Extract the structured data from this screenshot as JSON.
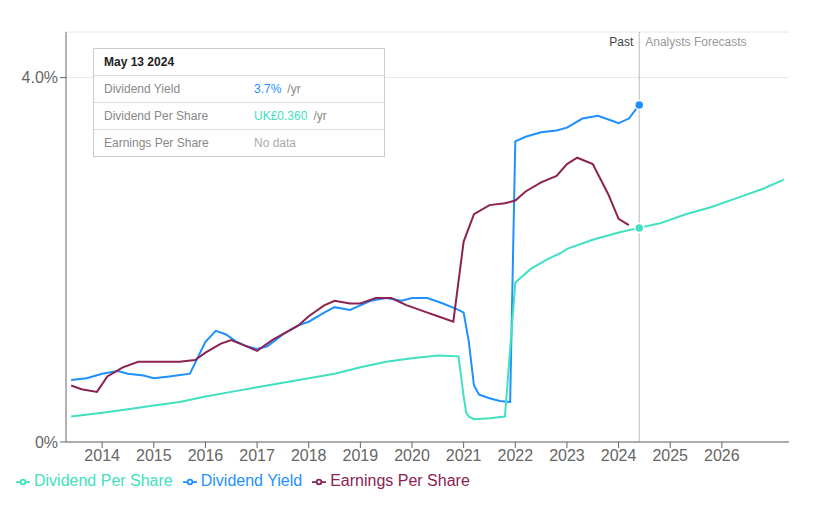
{
  "chart_data": {
    "type": "line",
    "xlim": [
      2013.3,
      2027.3
    ],
    "xticks": [
      2014,
      2015,
      2016,
      2017,
      2018,
      2019,
      2020,
      2021,
      2022,
      2023,
      2024,
      2025,
      2026
    ],
    "ylim": [
      0.0,
      4.5
    ],
    "yticks": [
      {
        "value": 0.0,
        "label": "0%"
      },
      {
        "value": 4.0,
        "label": "4.0%"
      }
    ],
    "grid": "y",
    "legend": "lower left",
    "divider_x": 2024.4,
    "annotations": [
      "Past",
      "Analysts Forecasts"
    ],
    "tooltip": {
      "title": "May 13 2024",
      "rows": [
        {
          "label": "Dividend Yield",
          "value": "3.7%",
          "suffix": "/yr",
          "color": "#1e90ff"
        },
        {
          "label": "Dividend Per Share",
          "value": "UK£0.360",
          "suffix": "/yr",
          "color": "#40e0c0"
        },
        {
          "label": "Earnings Per Share",
          "value": "No data",
          "color": "#aaaaaa"
        }
      ]
    },
    "series": [
      {
        "name": "Dividend Yield",
        "color": "#1e90ff",
        "x": [
          2013.4,
          2013.7,
          2014.0,
          2014.3,
          2014.5,
          2014.8,
          2015.0,
          2015.3,
          2015.7,
          2016.0,
          2016.2,
          2016.4,
          2016.6,
          2016.8,
          2017.0,
          2017.2,
          2017.5,
          2017.8,
          2018.0,
          2018.3,
          2018.5,
          2018.8,
          2019.0,
          2019.2,
          2019.5,
          2019.8,
          2020.0,
          2020.3,
          2020.6,
          2020.9,
          2021.0,
          2021.1,
          2021.2,
          2021.3,
          2021.5,
          2021.7,
          2021.9,
          2022.0,
          2022.2,
          2022.5,
          2022.8,
          2023.0,
          2023.3,
          2023.6,
          2023.9,
          2024.0,
          2024.2,
          2024.4
        ],
        "values": [
          0.68,
          0.7,
          0.75,
          0.78,
          0.75,
          0.73,
          0.7,
          0.72,
          0.75,
          1.1,
          1.22,
          1.18,
          1.1,
          1.05,
          1.02,
          1.05,
          1.18,
          1.28,
          1.32,
          1.42,
          1.48,
          1.45,
          1.5,
          1.55,
          1.58,
          1.55,
          1.58,
          1.58,
          1.52,
          1.45,
          1.42,
          1.1,
          0.62,
          0.52,
          0.48,
          0.45,
          0.44,
          3.3,
          3.35,
          3.4,
          3.42,
          3.45,
          3.55,
          3.58,
          3.52,
          3.5,
          3.55,
          3.7
        ]
      },
      {
        "name": "Dividend Per Share",
        "color": "#40e0c0",
        "x": [
          2013.4,
          2014.0,
          2014.5,
          2015.0,
          2015.5,
          2016.0,
          2016.5,
          2017.0,
          2017.5,
          2018.0,
          2018.5,
          2019.0,
          2019.5,
          2020.0,
          2020.5,
          2020.9,
          2021.0,
          2021.05,
          2021.1,
          2021.2,
          2021.5,
          2021.8,
          2022.0,
          2022.3,
          2022.6,
          2022.9,
          2023.0,
          2023.5,
          2024.0,
          2024.4,
          2024.8,
          2025.3,
          2025.8,
          2026.3,
          2026.8,
          2027.2
        ],
        "values": [
          0.28,
          0.32,
          0.36,
          0.4,
          0.44,
          0.5,
          0.55,
          0.6,
          0.65,
          0.7,
          0.75,
          0.82,
          0.88,
          0.92,
          0.95,
          0.94,
          0.5,
          0.32,
          0.28,
          0.25,
          0.26,
          0.28,
          1.75,
          1.9,
          2.0,
          2.08,
          2.12,
          2.22,
          2.3,
          2.35,
          2.4,
          2.5,
          2.58,
          2.68,
          2.78,
          2.88
        ]
      },
      {
        "name": "Earnings Per Share",
        "color": "#8b2252",
        "x": [
          2013.4,
          2013.6,
          2013.9,
          2014.1,
          2014.4,
          2014.7,
          2015.0,
          2015.2,
          2015.5,
          2015.8,
          2016.0,
          2016.3,
          2016.5,
          2016.8,
          2017.0,
          2017.3,
          2017.8,
          2018.0,
          2018.3,
          2018.5,
          2018.8,
          2019.0,
          2019.3,
          2019.6,
          2019.9,
          2020.0,
          2020.3,
          2020.5,
          2020.8,
          2021.0,
          2021.2,
          2021.5,
          2021.8,
          2022.0,
          2022.2,
          2022.5,
          2022.8,
          2023.0,
          2023.2,
          2023.5,
          2023.8,
          2024.0,
          2024.2
        ],
        "values": [
          0.62,
          0.58,
          0.55,
          0.72,
          0.82,
          0.88,
          0.88,
          0.88,
          0.88,
          0.9,
          0.98,
          1.08,
          1.12,
          1.05,
          1.0,
          1.12,
          1.28,
          1.38,
          1.5,
          1.55,
          1.52,
          1.52,
          1.58,
          1.58,
          1.5,
          1.48,
          1.42,
          1.38,
          1.32,
          2.2,
          2.5,
          2.6,
          2.62,
          2.65,
          2.75,
          2.85,
          2.92,
          3.05,
          3.12,
          3.05,
          2.72,
          2.45,
          2.38
        ]
      }
    ]
  }
}
